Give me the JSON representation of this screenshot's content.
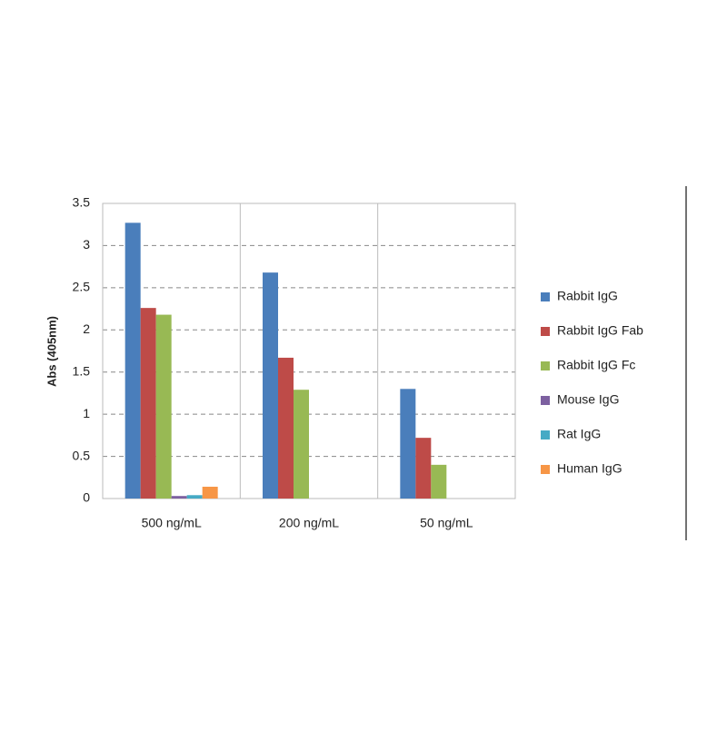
{
  "chart_data": {
    "type": "bar",
    "ylabel": "Abs (405nm)",
    "categories": [
      "500 ng/mL",
      "200 ng/mL",
      "50 ng/mL"
    ],
    "series": [
      {
        "name": "Rabbit IgG",
        "color": "#4a7ebb",
        "values": [
          3.27,
          2.68,
          1.3
        ]
      },
      {
        "name": "Rabbit IgG Fab",
        "color": "#be4b48",
        "values": [
          2.26,
          1.67,
          0.72
        ]
      },
      {
        "name": "Rabbit IgG Fc",
        "color": "#98b954",
        "values": [
          2.18,
          1.29,
          0.4
        ]
      },
      {
        "name": "Mouse IgG",
        "color": "#7d60a0",
        "values": [
          0.03,
          0,
          0
        ]
      },
      {
        "name": "Rat IgG",
        "color": "#46aac5",
        "values": [
          0.04,
          0,
          0
        ]
      },
      {
        "name": "Human IgG",
        "color": "#f79646",
        "values": [
          0.14,
          0,
          0
        ]
      }
    ],
    "ylim": [
      0,
      3.5
    ],
    "yticks": [
      0,
      0.5,
      1,
      1.5,
      2,
      2.5,
      3,
      3.5
    ],
    "grid": true,
    "legend": "right"
  }
}
